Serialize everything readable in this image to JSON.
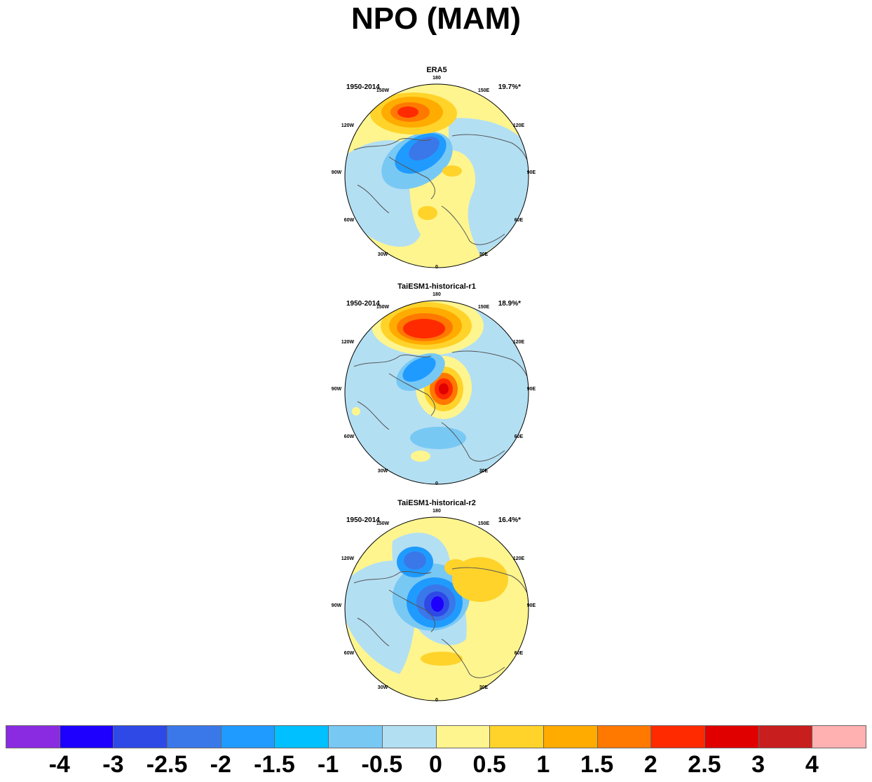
{
  "title": "NPO (MAM)",
  "panels": [
    {
      "name": "ERA5",
      "period": "1950-2014",
      "variance": "19.7%*"
    },
    {
      "name": "TaiESM1-historical-r1",
      "period": "1950-2014",
      "variance": "18.9%*"
    },
    {
      "name": "TaiESM1-historical-r2",
      "period": "1950-2014",
      "variance": "16.4%*"
    }
  ],
  "longitude_labels": {
    "l180": "180",
    "l150e": "150E",
    "l120e": "120E",
    "l90e": "90E",
    "l60e": "60E",
    "l30e": "30E",
    "l0": "0",
    "l30w": "30W",
    "l60w": "60W",
    "l90w": "90W",
    "l120w": "120W",
    "l150w": "150W"
  },
  "colorbar": {
    "colors": [
      "#8a2be2",
      "#1e00ff",
      "#2e49e6",
      "#3a78ea",
      "#1f9bff",
      "#00c0ff",
      "#78c8f4",
      "#b3dff3",
      "#fff58f",
      "#ffd32a",
      "#ffab00",
      "#ff7800",
      "#ff2a00",
      "#e00000",
      "#c81e1e",
      "#ffb0b0"
    ],
    "labels": [
      "-4",
      "-3",
      "-2.5",
      "-2",
      "-1.5",
      "-1",
      "-0.5",
      "0",
      "0.5",
      "1",
      "1.5",
      "2",
      "2.5",
      "3",
      "4"
    ]
  }
}
